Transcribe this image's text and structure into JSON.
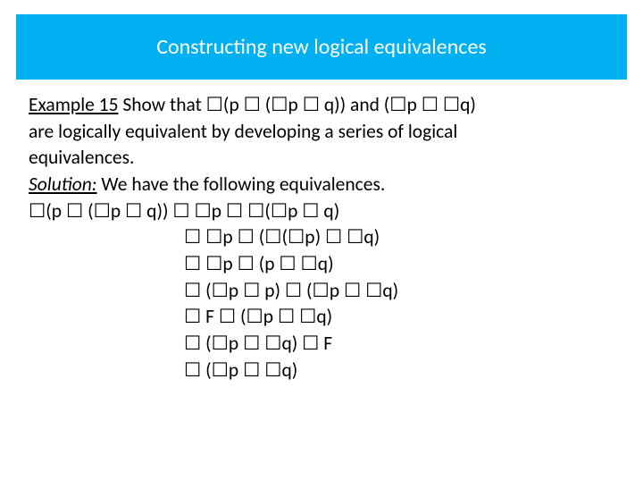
{
  "colors": {
    "title_bg": "#00b0f0",
    "title_fg": "#ffffff",
    "body_fg": "#000000",
    "page_bg": "#ffffff"
  },
  "typography": {
    "title_fontsize": 24,
    "body_fontsize": 21.5,
    "font_family": "Calibri"
  },
  "title": "Constructing new logical equivalences",
  "example_label": "Example 15",
  "example_text_1": " Show that ☐(p ☐ (☐p ☐ q)) and  (☐p ☐ ☐q) ",
  "example_text_2": "are logically equivalent by developing a series of logical ",
  "example_text_3": "equivalences.",
  "solution_label": "Solution:",
  "solution_intro": "  We have the following equivalences.",
  "lines": {
    "l0": "☐(p ☐ (☐p ☐ q)) ☐ ☐p ☐ ☐(☐p ☐ q)",
    "l1": "☐ ☐p ☐ (☐(☐p) ☐ ☐q)",
    "l2": "☐ ☐p ☐ (p ☐ ☐q)",
    "l3": "☐ (☐p ☐ p) ☐ (☐p ☐ ☐q)",
    "l4": "☐ F ☐ (☐p ☐ ☐q)",
    "l5": "☐ (☐p ☐ ☐q) ☐ F",
    "l6": "☐ (☐p ☐ ☐q)"
  }
}
